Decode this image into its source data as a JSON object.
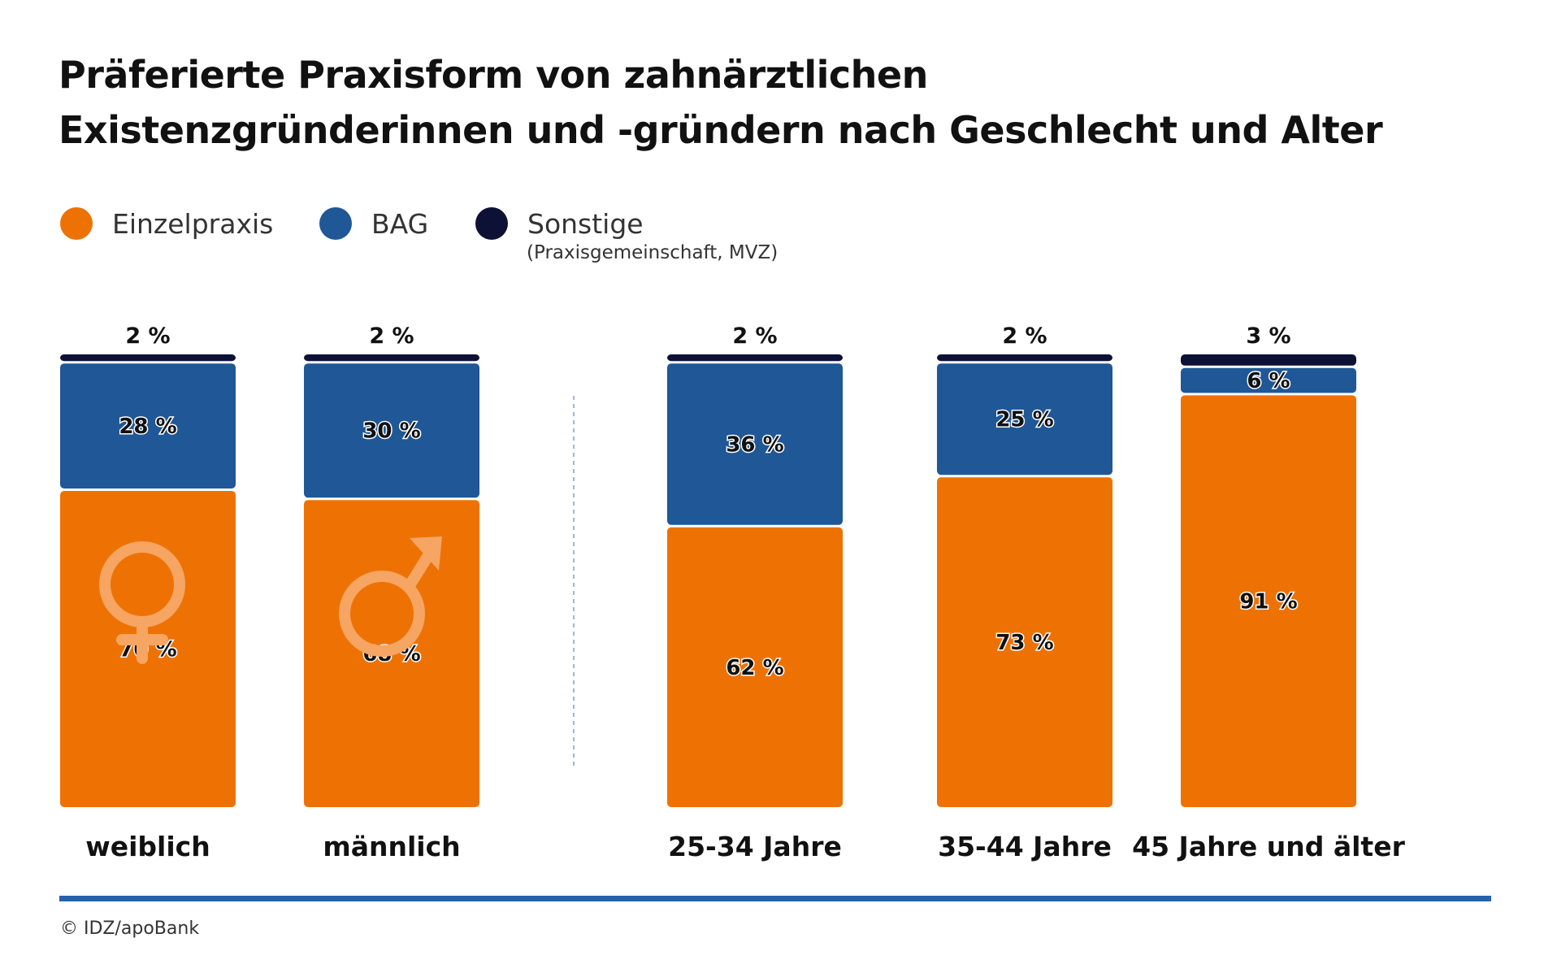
{
  "chart_data": {
    "type": "bar",
    "stacked": true,
    "title": "Präferierte Praxisform von zahnärztlichen Existenzgründerinnen und -gründern nach Geschlecht und Alter",
    "title_lines": [
      "Präferierte Praxisform von zahnärztlichen",
      "Existenzgründerinnen und -gründern nach Geschlecht und Alter"
    ],
    "categories": [
      "weiblich",
      "männlich",
      "25-34 Jahre",
      "35-44 Jahre",
      "45 Jahre und älter"
    ],
    "category_groups": [
      [
        "weiblich",
        "männlich"
      ],
      [
        "25-34 Jahre",
        "35-44 Jahre",
        "45 Jahre und älter"
      ]
    ],
    "unit": "%",
    "ylim": [
      0,
      100
    ],
    "grid": false,
    "legend_position": "top-left",
    "series": [
      {
        "name": "Einzelpraxis",
        "color": "#ee7203",
        "values": [
          70,
          68,
          62,
          73,
          91
        ]
      },
      {
        "name": "BAG",
        "color": "#1f5797",
        "values": [
          28,
          30,
          36,
          25,
          6
        ]
      },
      {
        "name": "Sonstige",
        "note": "(Praxisgemeinschaft, MVZ)",
        "color": "#0d1135",
        "values": [
          2,
          2,
          2,
          2,
          3
        ]
      }
    ],
    "icons": [
      "female-symbol-icon",
      "male-symbol-icon"
    ]
  },
  "footer": {
    "source": "© IDZ/apoBank"
  }
}
